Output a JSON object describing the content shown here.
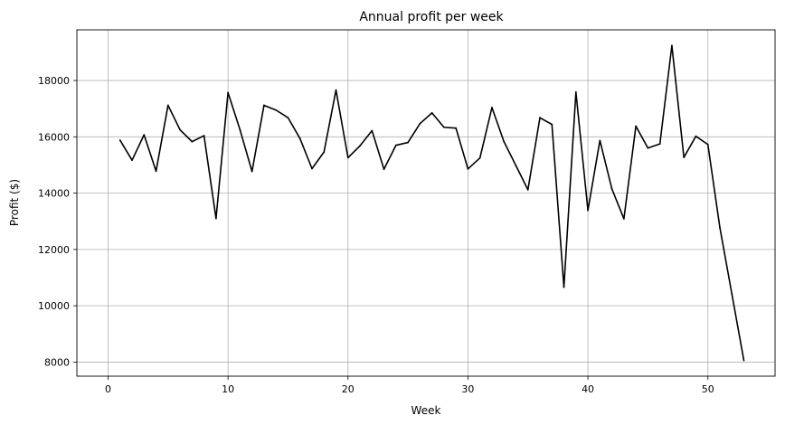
{
  "chart_data": {
    "type": "line",
    "title": "Annual profit per week",
    "xlabel": "Week",
    "ylabel": "Profit ($)",
    "xlim": [
      -2.6,
      55.6
    ],
    "ylim": [
      7500,
      19800
    ],
    "xticks": [
      0,
      10,
      20,
      30,
      40,
      50
    ],
    "yticks": [
      8000,
      10000,
      12000,
      14000,
      16000,
      18000
    ],
    "grid": true,
    "line_color": "#000000",
    "x": [
      1,
      2,
      3,
      4,
      5,
      6,
      7,
      8,
      9,
      10,
      11,
      12,
      13,
      14,
      15,
      16,
      17,
      18,
      19,
      20,
      21,
      22,
      23,
      24,
      25,
      26,
      27,
      28,
      29,
      30,
      31,
      32,
      33,
      34,
      35,
      36,
      37,
      38,
      39,
      40,
      41,
      42,
      43,
      44,
      45,
      46,
      47,
      48,
      49,
      50,
      51,
      52,
      53
    ],
    "values": [
      15880,
      15170,
      16070,
      14780,
      17120,
      16250,
      15830,
      16040,
      13100,
      17570,
      16250,
      14770,
      17120,
      16950,
      16680,
      15940,
      14870,
      15460,
      17660,
      15260,
      15680,
      16220,
      14850,
      15700,
      15800,
      16470,
      16850,
      16340,
      16310,
      14860,
      15250,
      17040,
      15830,
      14980,
      14120,
      16680,
      16440,
      10660,
      17590,
      13390,
      15870,
      14150,
      13090,
      16380,
      15600,
      15750,
      19240,
      15270,
      16020,
      15730,
      12780,
      10420,
      8060
    ]
  }
}
